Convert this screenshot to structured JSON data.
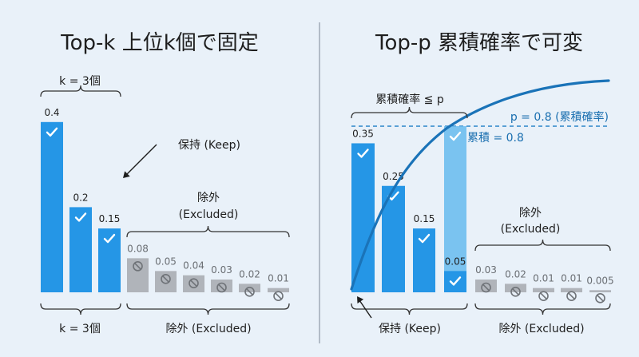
{
  "chart_data": [
    {
      "type": "bar",
      "title": "Top-k 上位k個で固定",
      "values": [
        0.4,
        0.2,
        0.15,
        0.08,
        0.05,
        0.04,
        0.03,
        0.02,
        0.01
      ],
      "value_labels": [
        "0.4",
        "0.2",
        "0.15",
        "0.08",
        "0.05",
        "0.04",
        "0.03",
        "0.02",
        "0.01"
      ],
      "kept_count": 3,
      "top_brace_label": "k = 3個",
      "keep_annotation": "保持 (Keep)",
      "excluded_label_line1": "除外",
      "excluded_label_line2": "(Excluded)",
      "bottom_kept_label": "k = 3個",
      "bottom_excluded_label": "除外 (Excluded)",
      "colors": {
        "kept": "#2596e6",
        "excluded": "#b0b4ba"
      }
    },
    {
      "type": "bar",
      "title": "Top-p 累積確率で可変",
      "values": [
        0.35,
        0.25,
        0.15,
        0.05,
        0.03,
        0.02,
        0.01,
        0.01,
        0.005
      ],
      "value_labels": [
        "0.35",
        "0.25",
        "0.15",
        "0.05",
        "0.03",
        "0.02",
        "0.01",
        "0.01",
        "0.005"
      ],
      "kept_count": 4,
      "threshold_p": 0.8,
      "threshold_label": "p = 0.8 (累積確率)",
      "cumulative_label": "累積 = 0.8",
      "top_brace_label": "累積確率 ≦ p",
      "excluded_label_line1": "除外",
      "excluded_label_line2": "(Excluded)",
      "bottom_kept_label": "保持 (Keep)",
      "bottom_excluded_label": "除外 (Excluded)",
      "colors": {
        "kept": "#2596e6",
        "boundary": "#66bbee",
        "excluded": "#b0b4ba",
        "curve": "#1a73b8"
      }
    }
  ]
}
